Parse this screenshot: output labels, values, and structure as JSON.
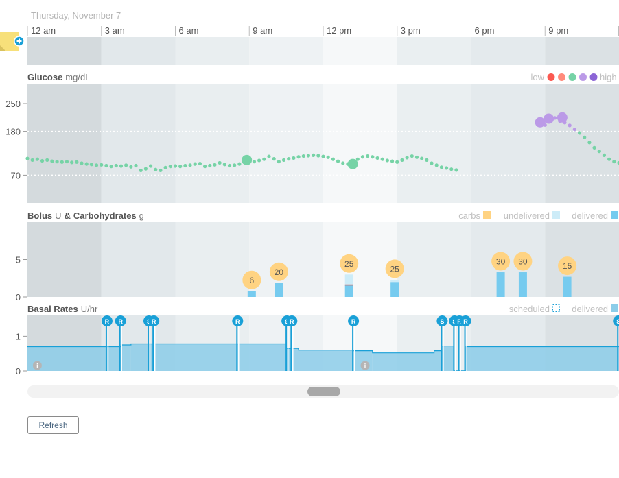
{
  "date_label": "Thursday, November 7",
  "refresh_label": "Refresh",
  "time_ticks": [
    "12 am",
    "3 am",
    "6 am",
    "9 am",
    "12 pm",
    "3 pm",
    "6 pm",
    "9 pm"
  ],
  "colors": {
    "glucose_target": "#76d3a6",
    "glucose_high": "#bb9ae7",
    "glucose_very_high": "#8c65d6",
    "glucose_low": "#fb5951",
    "glucose_very_low": "#ff8b7c",
    "bolus_delivered": "#76cbef",
    "bolus_undelivered": "#cdecf8",
    "carbs": "#ffd382",
    "basal_fill": "#8ccde9",
    "basal_line": "#19a0d7",
    "marker_blue": "#19a0d7"
  },
  "glucose": {
    "title": "Glucose",
    "unit": "mg/dL",
    "legend_low": "low",
    "legend_high": "high",
    "legend_colors": [
      "#fb5951",
      "#ff8b7c",
      "#76d3a6",
      "#bb9ae7",
      "#8c65d6"
    ]
  },
  "bolus": {
    "title": "Bolus",
    "unit_u": "U",
    "amp": "&",
    "title2": "Carbohydrates",
    "unit_g": "g",
    "legend_carbs": "carbs",
    "legend_undelivered": "undelivered",
    "legend_delivered": "delivered"
  },
  "basal": {
    "title": "Basal Rates",
    "unit": "U/hr",
    "legend_scheduled": "scheduled",
    "legend_delivered": "delivered"
  },
  "chart_data": {
    "type": "line",
    "x_unit": "hour of day",
    "x_range": [
      0,
      24
    ],
    "glucose_ylim": [
      0,
      300
    ],
    "glucose_ticks": [
      70,
      180,
      250
    ],
    "glucose_target_range": [
      70,
      180
    ],
    "glucose_series": [
      [
        0.0,
        112
      ],
      [
        0.2,
        108
      ],
      [
        0.4,
        110
      ],
      [
        0.6,
        106
      ],
      [
        0.8,
        108
      ],
      [
        1.0,
        105
      ],
      [
        1.2,
        104
      ],
      [
        1.4,
        103
      ],
      [
        1.6,
        104
      ],
      [
        1.8,
        102
      ],
      [
        2.0,
        103
      ],
      [
        2.2,
        100
      ],
      [
        2.4,
        98
      ],
      [
        2.6,
        97
      ],
      [
        2.8,
        95
      ],
      [
        3.0,
        96
      ],
      [
        3.2,
        94
      ],
      [
        3.4,
        92
      ],
      [
        3.6,
        94
      ],
      [
        3.8,
        93
      ],
      [
        4.0,
        95
      ],
      [
        4.2,
        91
      ],
      [
        4.4,
        94
      ],
      [
        4.6,
        82
      ],
      [
        4.8,
        86
      ],
      [
        5.0,
        93
      ],
      [
        5.2,
        84
      ],
      [
        5.4,
        82
      ],
      [
        5.6,
        89
      ],
      [
        5.8,
        92
      ],
      [
        6.0,
        93
      ],
      [
        6.2,
        92
      ],
      [
        6.4,
        94
      ],
      [
        6.6,
        95
      ],
      [
        6.8,
        98
      ],
      [
        7.0,
        99
      ],
      [
        7.2,
        92
      ],
      [
        7.4,
        94
      ],
      [
        7.6,
        96
      ],
      [
        7.8,
        101
      ],
      [
        8.0,
        97
      ],
      [
        8.2,
        94
      ],
      [
        8.4,
        95
      ],
      [
        8.6,
        98
      ],
      [
        8.8,
        102
      ],
      [
        9.0,
        106
      ],
      [
        9.2,
        104
      ],
      [
        9.4,
        107
      ],
      [
        9.6,
        110
      ],
      [
        9.8,
        117
      ],
      [
        10.0,
        111
      ],
      [
        10.2,
        104
      ],
      [
        10.4,
        108
      ],
      [
        10.6,
        111
      ],
      [
        10.8,
        113
      ],
      [
        11.0,
        116
      ],
      [
        11.2,
        118
      ],
      [
        11.4,
        119
      ],
      [
        11.6,
        120
      ],
      [
        11.8,
        119
      ],
      [
        12.0,
        117
      ],
      [
        12.2,
        115
      ],
      [
        12.4,
        110
      ],
      [
        12.6,
        105
      ],
      [
        12.8,
        100
      ],
      [
        13.0,
        98
      ],
      [
        13.2,
        104
      ],
      [
        13.4,
        110
      ],
      [
        13.6,
        116
      ],
      [
        13.8,
        118
      ],
      [
        14.0,
        116
      ],
      [
        14.2,
        113
      ],
      [
        14.4,
        110
      ],
      [
        14.6,
        107
      ],
      [
        14.8,
        105
      ],
      [
        15.0,
        103
      ],
      [
        15.2,
        108
      ],
      [
        15.4,
        114
      ],
      [
        15.6,
        118
      ],
      [
        15.8,
        115
      ],
      [
        16.0,
        112
      ],
      [
        16.2,
        108
      ],
      [
        16.4,
        100
      ],
      [
        16.6,
        95
      ],
      [
        16.8,
        90
      ],
      [
        17.0,
        88
      ],
      [
        17.2,
        85
      ],
      [
        17.4,
        83
      ],
      [
        21.0,
        196
      ],
      [
        21.2,
        210
      ],
      [
        21.4,
        214
      ],
      [
        21.6,
        206
      ],
      [
        21.8,
        202
      ],
      [
        22.0,
        195
      ],
      [
        22.2,
        185
      ],
      [
        22.4,
        176
      ],
      [
        22.6,
        165
      ],
      [
        22.8,
        152
      ],
      [
        23.0,
        139
      ],
      [
        23.2,
        130
      ],
      [
        23.4,
        120
      ],
      [
        23.6,
        110
      ],
      [
        23.8,
        104
      ],
      [
        24.0,
        101
      ]
    ],
    "glucose_large_points": [
      [
        8.9,
        108,
        "target"
      ],
      [
        13.2,
        98,
        "target"
      ],
      [
        20.8,
        203,
        "high"
      ],
      [
        21.15,
        212,
        "high"
      ],
      [
        21.7,
        215,
        "high"
      ]
    ],
    "bolus_ylim": [
      0,
      10
    ],
    "bolus_ticks": [
      0,
      5
    ],
    "boluses": [
      {
        "time": 9.1,
        "delivered": 0.8,
        "undelivered": 0,
        "carbs": 6
      },
      {
        "time": 10.2,
        "delivered": 1.9,
        "undelivered": 0,
        "carbs": 20
      },
      {
        "time": 13.05,
        "delivered": 1.6,
        "undelivered": 1.4,
        "carbs": 25
      },
      {
        "time": 14.9,
        "delivered": 2.0,
        "undelivered": 0.3,
        "carbs": 25
      },
      {
        "time": 19.2,
        "delivered": 3.3,
        "undelivered": 0,
        "carbs": 30
      },
      {
        "time": 20.1,
        "delivered": 3.3,
        "undelivered": 0,
        "carbs": 30
      },
      {
        "time": 21.9,
        "delivered": 2.7,
        "undelivered": 0,
        "carbs": 15
      }
    ],
    "basal_ylim": [
      0,
      1.6
    ],
    "basal_ticks": [
      0,
      1
    ],
    "basal_segments": [
      [
        0.0,
        3.2,
        0.7
      ],
      [
        3.2,
        3.8,
        0.7
      ],
      [
        3.8,
        4.2,
        0.75
      ],
      [
        4.2,
        5.0,
        0.78
      ],
      [
        5.0,
        8.5,
        0.78
      ],
      [
        8.5,
        10.5,
        0.78
      ],
      [
        10.5,
        11.0,
        0.65
      ],
      [
        11.0,
        13.2,
        0.6
      ],
      [
        13.2,
        14.0,
        0.58
      ],
      [
        14.0,
        15.0,
        0.52
      ],
      [
        15.0,
        16.5,
        0.52
      ],
      [
        16.5,
        16.8,
        0.58
      ],
      [
        16.8,
        17.3,
        0.72
      ],
      [
        17.3,
        17.8,
        0.02
      ],
      [
        17.8,
        18.2,
        0.7
      ],
      [
        18.2,
        24.0,
        0.7
      ]
    ],
    "basal_markers": [
      {
        "time": 3.2,
        "label": "R"
      },
      {
        "time": 3.75,
        "label": "R"
      },
      {
        "time": 4.9,
        "label": "S"
      },
      {
        "time": 5.1,
        "label": "R"
      },
      {
        "time": 8.5,
        "label": "R"
      },
      {
        "time": 10.5,
        "label": "S"
      },
      {
        "time": 10.7,
        "label": "R"
      },
      {
        "time": 13.2,
        "label": "R"
      },
      {
        "time": 16.8,
        "label": "S"
      },
      {
        "time": 17.3,
        "label": "S"
      },
      {
        "time": 17.5,
        "label": "R"
      },
      {
        "time": 17.75,
        "label": "R"
      },
      {
        "time": 23.95,
        "label": "S"
      }
    ],
    "info_markers": [
      0.4,
      13.7
    ]
  }
}
